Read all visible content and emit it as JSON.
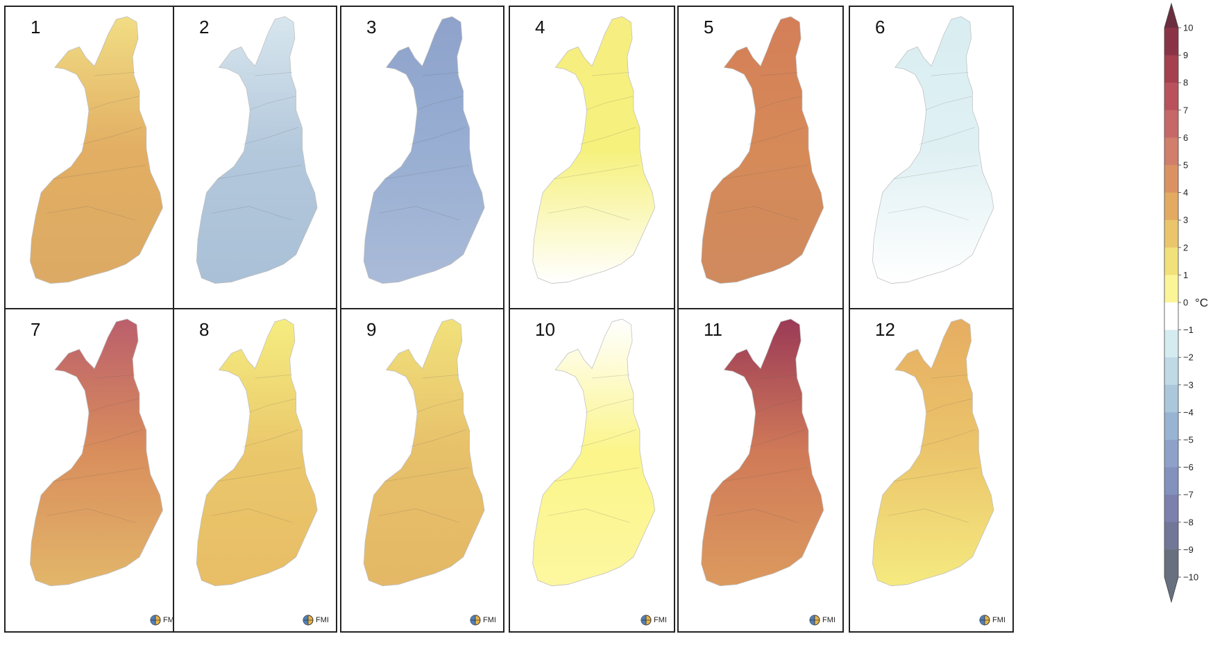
{
  "panels": [
    {
      "label": "1",
      "color": "#e2ae63",
      "north": "#f1dd84",
      "south": "#dcaa64"
    },
    {
      "label": "2",
      "color": "#b4c8dc",
      "north": "#d7e6ee",
      "south": "#a9c0d6"
    },
    {
      "label": "3",
      "color": "#98aed2",
      "north": "#8ea2cb",
      "south": "#aabbd8"
    },
    {
      "label": "4",
      "color": "#f6f17d",
      "north": "#f6ee80",
      "south": "#ffffff"
    },
    {
      "label": "5",
      "color": "#d68a58",
      "north": "#d47e58",
      "south": "#cf8a5e"
    },
    {
      "label": "6",
      "color": "#dff0f3",
      "north": "#d9eef2",
      "south": "#ffffff"
    },
    {
      "label": "7",
      "color": "#d98e5c",
      "north": "#bb5f6c",
      "south": "#e2b66a"
    },
    {
      "label": "8",
      "color": "#eac76b",
      "north": "#f5ed80",
      "south": "#e8bd66"
    },
    {
      "label": "9",
      "color": "#e7c06a",
      "north": "#f1e17b",
      "south": "#e4b866"
    },
    {
      "label": "10",
      "color": "#fbf58a",
      "north": "#ffffff",
      "south": "#fdf7a0"
    },
    {
      "label": "11",
      "color": "#d07a58",
      "north": "#9b3a57",
      "south": "#dc9a5e"
    },
    {
      "label": "12",
      "color": "#ebc56b",
      "north": "#e6ad62",
      "south": "#f5ea80"
    }
  ],
  "logo": {
    "text": "FMI",
    "icon": "fmi-globe-icon"
  },
  "colorbar": {
    "unit": "°C",
    "ticks": [
      "10",
      "9",
      "8",
      "7",
      "6",
      "5",
      "4",
      "3",
      "2",
      "1",
      "0",
      "−1",
      "−2",
      "−3",
      "−4",
      "−5",
      "−6",
      "−7",
      "−8",
      "−9",
      "−10"
    ],
    "colors": [
      "#6b2e3f",
      "#8b3346",
      "#a5404f",
      "#b9525c",
      "#c66868",
      "#d17e6a",
      "#da9262",
      "#e3aa62",
      "#eac56b",
      "#f2e17a",
      "#fbf598",
      "#ffffff",
      "#d4ebf0",
      "#bfd9e5",
      "#aac7db",
      "#97b4d3",
      "#8ea1c9",
      "#8391bd",
      "#7b80ad",
      "#717797",
      "#66707f"
    ]
  }
}
